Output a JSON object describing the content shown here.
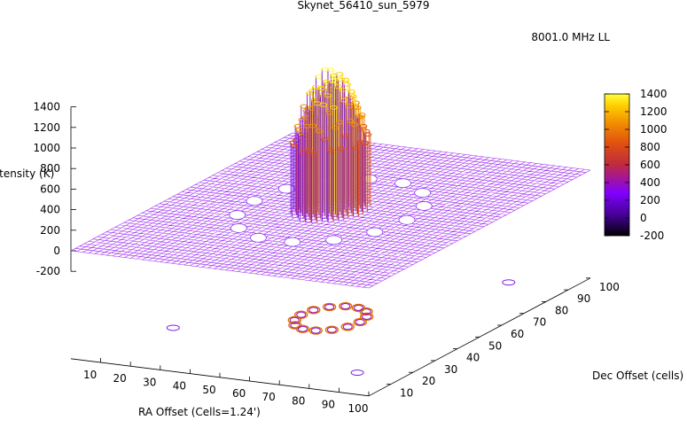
{
  "chart_data": {
    "type": "surface3d",
    "title": "Skynet_56410_sun_5979",
    "legend": {
      "label": "8001.0 MHz LL",
      "placement": "top-right"
    },
    "zlabel": "Intensity (K)",
    "xlabel": "RA Offset (Cells=1.24')",
    "ylabel": "Dec Offset (cells)",
    "z_ticks": [
      "1400",
      "1200",
      "1000",
      "800",
      "600",
      "400",
      "200",
      "0",
      "-200"
    ],
    "x_ticks": [
      "10",
      "20",
      "30",
      "40",
      "50",
      "60",
      "70",
      "80",
      "90",
      "100"
    ],
    "y_ticks": [
      "10",
      "20",
      "30",
      "40",
      "50",
      "60",
      "70",
      "80",
      "90",
      "100"
    ],
    "colorbar": {
      "ticks": [
        "1400",
        "1200",
        "1000",
        "800",
        "600",
        "400",
        "200",
        "0",
        "-200"
      ],
      "range": [
        -200,
        1400
      ],
      "palette": [
        "#000000",
        "#3a0080",
        "#8000ff",
        "#c02a40",
        "#e05010",
        "#f29000",
        "#ffd000",
        "#ffff40"
      ]
    },
    "zlim": [
      -200,
      1400
    ],
    "xlim": [
      1,
      100
    ],
    "ylim": [
      1,
      100
    ],
    "background_level_K": 0,
    "sources": [
      {
        "name": "cluster",
        "x_range": [
          40,
          60
        ],
        "y_range": [
          40,
          60
        ],
        "peak_K": 1400,
        "min_K": 700
      },
      {
        "name": "ring",
        "radius_cells": 32,
        "level_K": 300
      }
    ]
  }
}
